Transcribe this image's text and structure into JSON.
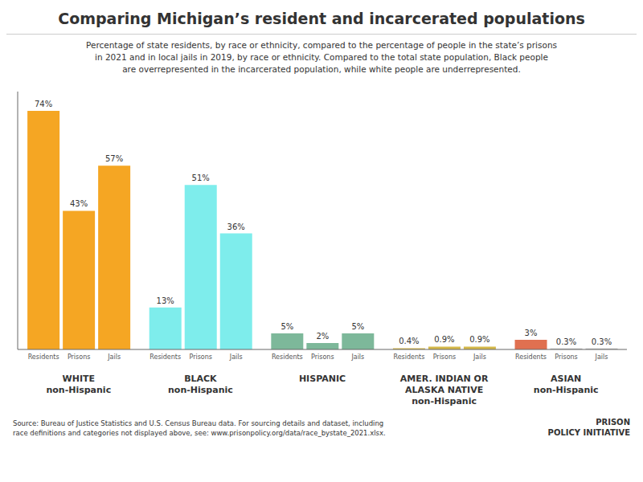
{
  "chart_data": {
    "type": "bar",
    "title": "Comparing Michigan’s resident and incarcerated populations",
    "subtitle": "Percentage of state residents, by race or ethnicity, compared to the percentage of people in the state’s prisons\nin 2021 and in local jails in 2019, by race or ethnicity. Compared to the total state population, Black people\nare overrepresented in the incarcerated population, while white people are underrepresented.",
    "source": "Source: Bureau of Justice Statistics and U.S. Census Bureau data. For sourcing details and dataset, including\nrace definitions and categories not displayed above, see: www.prisonpolicy.org/data/race_bystate_2021.xlsx.",
    "annotation": "PRISON\nPOLICY INITIATIVE",
    "categories": [
      "WHITE\nnon-Hispanic",
      "BLACK\nnon-Hispanic",
      "HISPANIC",
      "AMER. INDIAN OR\nALASKA NATIVE\nnon-Hispanic",
      "ASIAN\nnon-Hispanic"
    ],
    "series": [
      {
        "name": "Residents",
        "colors": [
          "#f5a623",
          "#7eedec",
          "#7db89a",
          "#d4b84a",
          "#e07050"
        ],
        "values": [
          74,
          13,
          5,
          0.4,
          3
        ],
        "value_labels": [
          "74%",
          "13%",
          "5%",
          "0.4%",
          "3%"
        ]
      },
      {
        "name": "Prisons",
        "colors": [
          "#f5a623",
          "#7eedec",
          "#7db89a",
          "#d4b84a",
          "#b8b8b8"
        ],
        "values": [
          43,
          51,
          2,
          0.9,
          0.3
        ],
        "value_labels": [
          "43%",
          "51%",
          "2%",
          "0.9%",
          "0.3%"
        ]
      },
      {
        "name": "Jails",
        "colors": [
          "#f5a623",
          "#7eedec",
          "#7db89a",
          "#d4b84a",
          "#b8b8b8"
        ],
        "values": [
          57,
          36,
          5,
          0.9,
          0.3
        ],
        "value_labels": [
          "57%",
          "36%",
          "5%",
          "0.9%",
          "0.3%"
        ]
      }
    ],
    "ylim": [
      0,
      80
    ],
    "data_labels": true,
    "tick_labels": "x",
    "grid": false
  }
}
